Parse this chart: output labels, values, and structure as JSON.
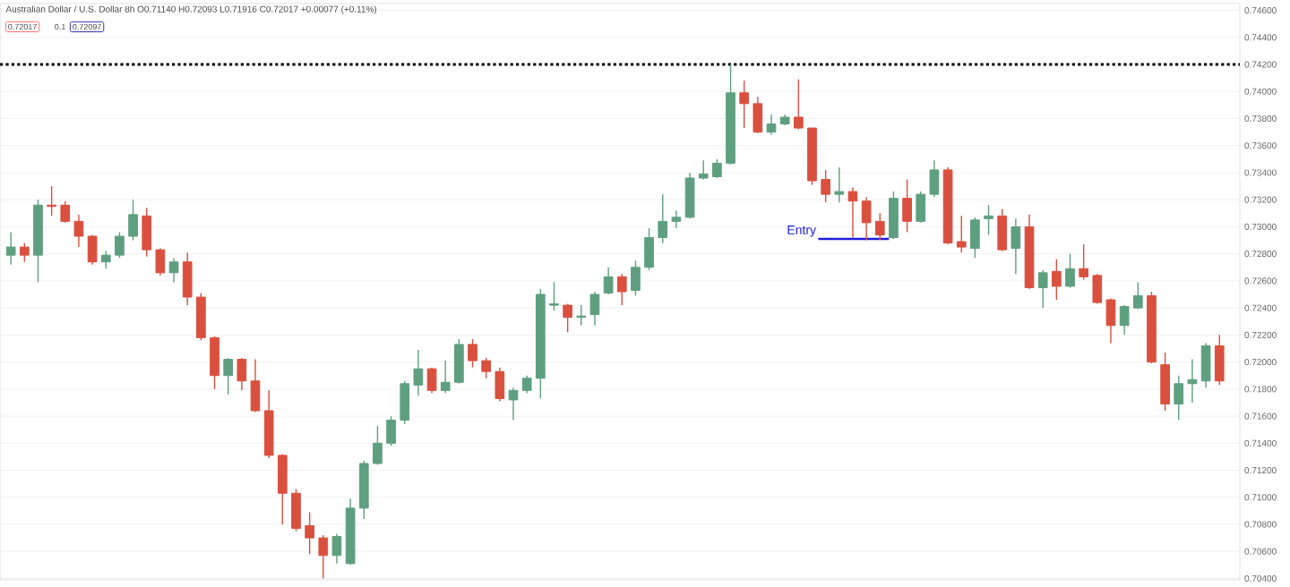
{
  "chart_data": {
    "type": "candlestick",
    "title": "Australian Dollar / U.S. Dollar 8h O0.71140 H0.72093 L0.71916 C0.72017 +0.00077 (+0.11%)",
    "annotations": [
      "0.72017",
      "0.1",
      "0.72097"
    ],
    "categories": [
      null,
      null,
      null,
      null,
      null,
      null,
      null,
      null,
      null,
      null,
      null,
      null,
      null,
      null,
      null,
      null,
      null,
      null,
      null,
      null,
      null,
      null,
      null,
      null,
      null,
      null,
      null,
      null,
      null,
      null,
      null,
      null,
      null,
      null,
      null,
      null,
      null,
      null,
      null,
      null,
      null,
      null,
      null,
      null,
      null,
      null,
      null,
      null,
      null,
      null,
      null,
      null,
      null,
      null,
      null,
      null,
      null,
      null,
      null,
      null,
      null,
      null,
      null,
      null,
      null,
      null,
      null,
      null,
      null,
      null,
      null,
      null,
      null,
      null,
      null,
      null,
      null,
      null,
      null,
      null,
      null,
      null,
      null,
      null,
      null,
      null,
      null,
      null,
      null,
      null
    ],
    "ohlc": [
      [
        0.7279,
        0.7296,
        0.7272,
        0.7285
      ],
      [
        0.7285,
        0.7288,
        0.7274,
        0.7279
      ],
      [
        0.7279,
        0.732,
        0.7259,
        0.7316
      ],
      [
        0.7316,
        0.733,
        0.7308,
        0.7315
      ],
      [
        0.7316,
        0.7319,
        0.7303,
        0.7304
      ],
      [
        0.7304,
        0.7309,
        0.7285,
        0.7293
      ],
      [
        0.7293,
        0.7294,
        0.7272,
        0.7274
      ],
      [
        0.7274,
        0.7282,
        0.7269,
        0.7279
      ],
      [
        0.7279,
        0.7296,
        0.7277,
        0.7293
      ],
      [
        0.7293,
        0.732,
        0.729,
        0.7309
      ],
      [
        0.7308,
        0.7314,
        0.7278,
        0.7283
      ],
      [
        0.7283,
        0.7284,
        0.7264,
        0.7266
      ],
      [
        0.7266,
        0.7277,
        0.7259,
        0.7274
      ],
      [
        0.7274,
        0.7281,
        0.7242,
        0.7248
      ],
      [
        0.7248,
        0.7251,
        0.7216,
        0.7218
      ],
      [
        0.7218,
        0.7219,
        0.718,
        0.719
      ],
      [
        0.719,
        0.7203,
        0.7176,
        0.7202
      ],
      [
        0.7202,
        0.7203,
        0.7179,
        0.7186
      ],
      [
        0.7186,
        0.7202,
        0.7163,
        0.7164
      ],
      [
        0.7164,
        0.7179,
        0.7129,
        0.7131
      ],
      [
        0.7131,
        0.7132,
        0.708,
        0.7103
      ],
      [
        0.7103,
        0.7106,
        0.7075,
        0.7077
      ],
      [
        0.7079,
        0.7089,
        0.7058,
        0.707
      ],
      [
        0.707,
        0.7072,
        0.704,
        0.7057
      ],
      [
        0.7057,
        0.7073,
        0.7051,
        0.7071
      ],
      [
        0.7051,
        0.7099,
        0.705,
        0.7092
      ],
      [
        0.7092,
        0.7127,
        0.7084,
        0.7125
      ],
      [
        0.7125,
        0.7153,
        0.7124,
        0.714
      ],
      [
        0.714,
        0.716,
        0.7138,
        0.7157
      ],
      [
        0.7157,
        0.7186,
        0.7154,
        0.7184
      ],
      [
        0.7183,
        0.7209,
        0.7175,
        0.7195
      ],
      [
        0.7195,
        0.7196,
        0.7177,
        0.7179
      ],
      [
        0.7179,
        0.7201,
        0.7177,
        0.7185
      ],
      [
        0.7185,
        0.7217,
        0.7184,
        0.7213
      ],
      [
        0.7213,
        0.7217,
        0.7196,
        0.7201
      ],
      [
        0.7201,
        0.7203,
        0.7188,
        0.7193
      ],
      [
        0.7193,
        0.7196,
        0.7171,
        0.7173
      ],
      [
        0.7172,
        0.7181,
        0.7157,
        0.7179
      ],
      [
        0.7179,
        0.719,
        0.7177,
        0.7188
      ],
      [
        0.7188,
        0.7254,
        0.7173,
        0.725
      ],
      [
        0.7242,
        0.7259,
        0.7238,
        0.7243
      ],
      [
        0.7242,
        0.7243,
        0.7222,
        0.7233
      ],
      [
        0.7233,
        0.7242,
        0.7227,
        0.7234
      ],
      [
        0.7235,
        0.7252,
        0.7227,
        0.725
      ],
      [
        0.7251,
        0.727,
        0.725,
        0.7263
      ],
      [
        0.7263,
        0.7265,
        0.7242,
        0.7252
      ],
      [
        0.7253,
        0.7275,
        0.7249,
        0.727
      ],
      [
        0.727,
        0.7299,
        0.7268,
        0.7292
      ],
      [
        0.7292,
        0.7324,
        0.7288,
        0.7304
      ],
      [
        0.7304,
        0.7312,
        0.7299,
        0.7307
      ],
      [
        0.7307,
        0.734,
        0.7306,
        0.7336
      ],
      [
        0.7336,
        0.7349,
        0.7335,
        0.7339
      ],
      [
        0.7337,
        0.735,
        0.7336,
        0.7347
      ],
      [
        0.7347,
        0.742,
        0.7346,
        0.7399
      ],
      [
        0.7399,
        0.7408,
        0.7373,
        0.7391
      ],
      [
        0.7391,
        0.7396,
        0.7369,
        0.737
      ],
      [
        0.737,
        0.7383,
        0.7368,
        0.7376
      ],
      [
        0.7376,
        0.7383,
        0.7375,
        0.7381
      ],
      [
        0.7381,
        0.7409,
        0.7372,
        0.7373
      ],
      [
        0.7373,
        0.7373,
        0.7331,
        0.7334
      ],
      [
        0.7335,
        0.7342,
        0.7318,
        0.7324
      ],
      [
        0.7324,
        0.7344,
        0.7318,
        0.7326
      ],
      [
        0.7326,
        0.7329,
        0.7292,
        0.7319
      ],
      [
        0.7319,
        0.7322,
        0.729,
        0.7303
      ],
      [
        0.7304,
        0.731,
        0.729,
        0.7294
      ],
      [
        0.7292,
        0.7326,
        0.7291,
        0.7321
      ],
      [
        0.7321,
        0.7335,
        0.7296,
        0.7304
      ],
      [
        0.7304,
        0.7326,
        0.7303,
        0.7324
      ],
      [
        0.7324,
        0.7349,
        0.7322,
        0.7342
      ],
      [
        0.7342,
        0.7344,
        0.7287,
        0.7288
      ],
      [
        0.7289,
        0.7308,
        0.7281,
        0.7285
      ],
      [
        0.7284,
        0.7307,
        0.7277,
        0.7305
      ],
      [
        0.7306,
        0.7316,
        0.7294,
        0.7308
      ],
      [
        0.7308,
        0.7313,
        0.7282,
        0.7283
      ],
      [
        0.7284,
        0.7306,
        0.7265,
        0.73
      ],
      [
        0.73,
        0.7309,
        0.7254,
        0.7255
      ],
      [
        0.7255,
        0.7268,
        0.724,
        0.7266
      ],
      [
        0.7267,
        0.7276,
        0.7246,
        0.7256
      ],
      [
        0.7256,
        0.728,
        0.7255,
        0.7269
      ],
      [
        0.7269,
        0.7287,
        0.7261,
        0.7263
      ],
      [
        0.7264,
        0.7265,
        0.7243,
        0.7244
      ],
      [
        0.7246,
        0.7247,
        0.7214,
        0.7227
      ],
      [
        0.7227,
        0.7242,
        0.722,
        0.7241
      ],
      [
        0.724,
        0.7259,
        0.7239,
        0.7249
      ],
      [
        0.7249,
        0.7252,
        0.7199,
        0.72
      ],
      [
        0.7198,
        0.7207,
        0.7164,
        0.7169
      ],
      [
        0.7169,
        0.719,
        0.7157,
        0.7184
      ],
      [
        0.7184,
        0.7202,
        0.717,
        0.7187
      ],
      [
        0.7186,
        0.7214,
        0.7181,
        0.7212
      ],
      [
        0.7212,
        0.722,
        0.7183,
        0.7186
      ]
    ],
    "colors": [
      "#5e9f80",
      "#d9503f",
      "#5e9f80",
      "#d9503f",
      "#d9503f",
      "#d9503f",
      "#d9503f",
      "#5e9f80",
      "#5e9f80",
      "#5e9f80",
      "#d9503f",
      "#d9503f",
      "#5e9f80",
      "#d9503f",
      "#d9503f",
      "#d9503f",
      "#5e9f80",
      "#d9503f",
      "#d9503f",
      "#d9503f",
      "#d9503f",
      "#d9503f",
      "#d9503f",
      "#d9503f",
      "#5e9f80",
      "#5e9f80",
      "#5e9f80",
      "#5e9f80",
      "#5e9f80",
      "#5e9f80",
      "#5e9f80",
      "#d9503f",
      "#5e9f80",
      "#5e9f80",
      "#d9503f",
      "#d9503f",
      "#d9503f",
      "#5e9f80",
      "#5e9f80",
      "#5e9f80",
      "#5e9f80",
      "#d9503f",
      "#5e9f80",
      "#5e9f80",
      "#5e9f80",
      "#d9503f",
      "#5e9f80",
      "#5e9f80",
      "#5e9f80",
      "#5e9f80",
      "#5e9f80",
      "#5e9f80",
      "#5e9f80",
      "#5e9f80",
      "#d9503f",
      "#d9503f",
      "#5e9f80",
      "#5e9f80",
      "#d9503f",
      "#d9503f",
      "#d9503f",
      "#5e9f80",
      "#d9503f",
      "#d9503f",
      "#d9503f",
      "#5e9f80",
      "#d9503f",
      "#5e9f80",
      "#5e9f80",
      "#d9503f",
      "#d9503f",
      "#5e9f80",
      "#5e9f80",
      "#d9503f",
      "#5e9f80",
      "#d9503f",
      "#5e9f80",
      "#d9503f",
      "#5e9f80",
      "#d9503f",
      "#d9503f",
      "#d9503f",
      "#5e9f80",
      "#5e9f80",
      "#d9503f",
      "#d9503f",
      "#5e9f80",
      "#5e9f80",
      "#5e9f80",
      "#d9503f"
    ],
    "ylim": [
      0.7039,
      0.7465
    ],
    "yticks": [
      {
        "value": 0.704,
        "label": "0.70400"
      },
      {
        "value": 0.706,
        "label": "0.70600"
      },
      {
        "value": 0.708,
        "label": "0.70800"
      },
      {
        "value": 0.71,
        "label": "0.71000"
      },
      {
        "value": 0.712,
        "label": "0.71200"
      },
      {
        "value": 0.714,
        "label": "0.71400"
      },
      {
        "value": 0.716,
        "label": "0.71600"
      },
      {
        "value": 0.718,
        "label": "0.71800"
      },
      {
        "value": 0.72,
        "label": "0.72000"
      },
      {
        "value": 0.722,
        "label": "0.72200"
      },
      {
        "value": 0.724,
        "label": "0.72400"
      },
      {
        "value": 0.726,
        "label": "0.72600"
      },
      {
        "value": 0.728,
        "label": "0.72800"
      },
      {
        "value": 0.73,
        "label": "0.73000"
      },
      {
        "value": 0.732,
        "label": "0.73200"
      },
      {
        "value": 0.734,
        "label": "0.73400"
      },
      {
        "value": 0.736,
        "label": "0.73600"
      },
      {
        "value": 0.738,
        "label": "0.73800"
      },
      {
        "value": 0.74,
        "label": "0.74000"
      },
      {
        "value": 0.742,
        "label": "0.74200"
      },
      {
        "value": 0.744,
        "label": "0.74400"
      },
      {
        "value": 0.746,
        "label": "0.74600"
      }
    ],
    "ref_lines": [
      {
        "axis": "y",
        "value": 0.742,
        "color": "#000000",
        "line_style": "dotted"
      },
      {
        "axis": "y",
        "value": 0.7291,
        "color": "#1e1edc",
        "label": "Entry"
      }
    ],
    "grid": "y",
    "tick_labels": "y"
  }
}
